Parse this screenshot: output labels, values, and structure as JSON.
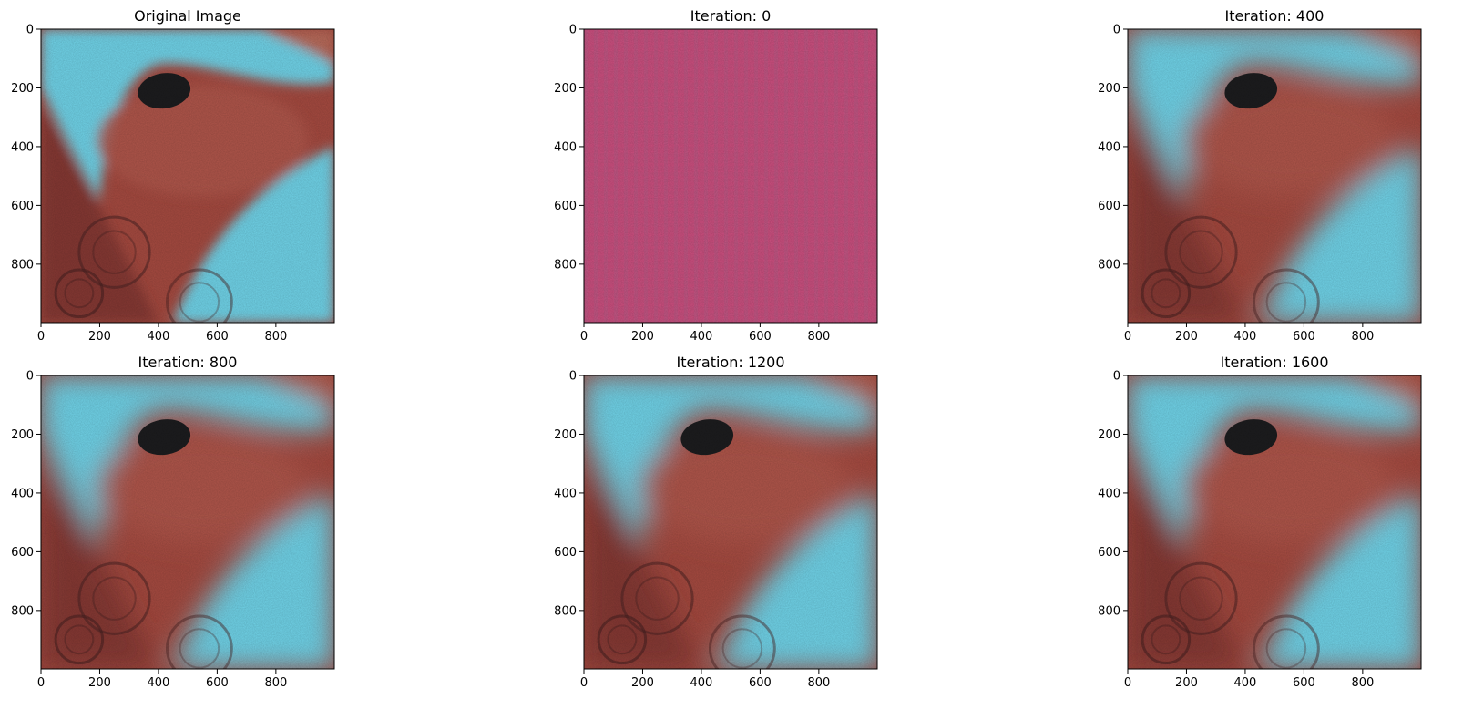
{
  "chart_data": [
    {
      "type": "image",
      "title": "Original Image",
      "image": "original",
      "xlim": [
        0,
        999
      ],
      "ylim": [
        999,
        0
      ],
      "xticks": [
        0,
        200,
        400,
        600,
        800
      ],
      "yticks": [
        0,
        200,
        400,
        600,
        800
      ]
    },
    {
      "type": "image",
      "title": "Iteration: 0",
      "image": "noise",
      "xlim": [
        0,
        999
      ],
      "ylim": [
        999,
        0
      ],
      "xticks": [
        0,
        200,
        400,
        600,
        800
      ],
      "yticks": [
        0,
        200,
        400,
        600,
        800
      ]
    },
    {
      "type": "image",
      "title": "Iteration: 400",
      "image": "reconstruction",
      "xlim": [
        0,
        999
      ],
      "ylim": [
        999,
        0
      ],
      "xticks": [
        0,
        200,
        400,
        600,
        800
      ],
      "yticks": [
        0,
        200,
        400,
        600,
        800
      ]
    },
    {
      "type": "image",
      "title": "Iteration: 800",
      "image": "reconstruction",
      "xlim": [
        0,
        999
      ],
      "ylim": [
        999,
        0
      ],
      "xticks": [
        0,
        200,
        400,
        600,
        800
      ],
      "yticks": [
        0,
        200,
        400,
        600,
        800
      ]
    },
    {
      "type": "image",
      "title": "Iteration: 1200",
      "image": "reconstruction",
      "xlim": [
        0,
        999
      ],
      "ylim": [
        999,
        0
      ],
      "xticks": [
        0,
        200,
        400,
        600,
        800
      ],
      "yticks": [
        0,
        200,
        400,
        600,
        800
      ]
    },
    {
      "type": "image",
      "title": "Iteration: 1600",
      "image": "reconstruction",
      "xlim": [
        0,
        999
      ],
      "ylim": [
        999,
        0
      ],
      "xticks": [
        0,
        200,
        400,
        600,
        800
      ],
      "yticks": [
        0,
        200,
        400,
        600,
        800
      ]
    }
  ],
  "colors": {
    "cyan": "#6fd3e8",
    "red": "#a54a40",
    "dark_red": "#7d3230",
    "black_blob": "#1c1c1e",
    "noise_pink": "#c8507f"
  }
}
